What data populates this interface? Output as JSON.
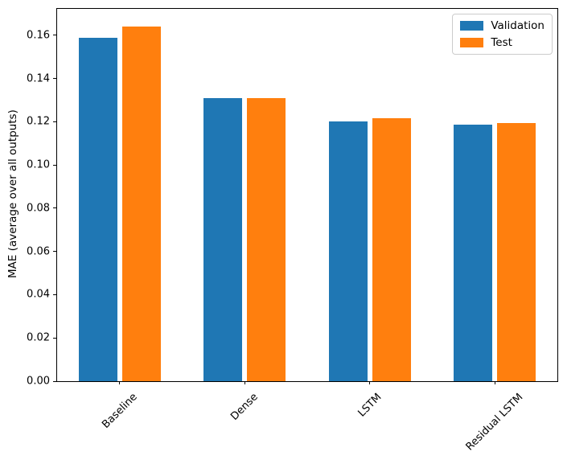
{
  "chart_data": {
    "type": "bar",
    "categories": [
      "Baseline",
      "Dense",
      "LSTM",
      "Residual LSTM"
    ],
    "series": [
      {
        "name": "Validation",
        "color": "#1f77b4",
        "values": [
          0.159,
          0.131,
          0.12,
          0.1185
        ]
      },
      {
        "name": "Test",
        "color": "#ff7f0e",
        "values": [
          0.164,
          0.131,
          0.1215,
          0.1195
        ]
      }
    ],
    "title": "",
    "xlabel": "",
    "ylabel": "MAE (average over all outputs)",
    "ylim": [
      0,
      0.1722
    ],
    "yticks": [
      0,
      0.02,
      0.04,
      0.06,
      0.08,
      0.1,
      0.12,
      0.14,
      0.16
    ],
    "ytick_labels": [
      "0.00",
      "0.02",
      "0.04",
      "0.06",
      "0.08",
      "0.10",
      "0.12",
      "0.14",
      "0.16"
    ],
    "xtick_rotation": 45,
    "grid": false,
    "legend_position": "upper right",
    "legend_entries": [
      "Validation",
      "Test"
    ]
  }
}
